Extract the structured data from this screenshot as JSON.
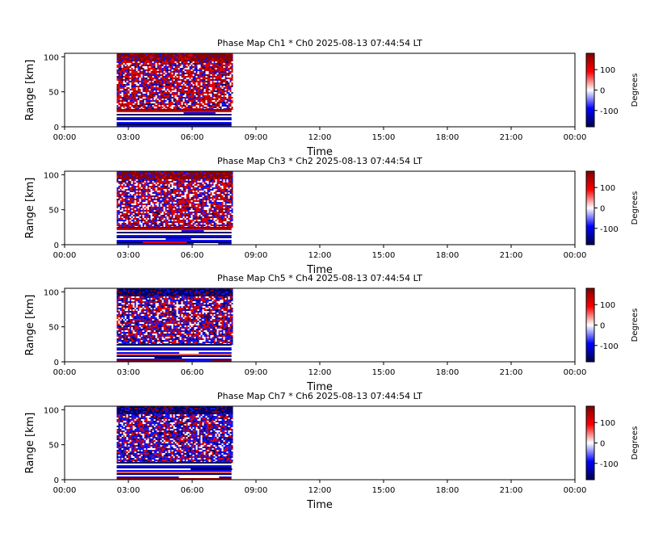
{
  "figure": {
    "background": "#ffffff"
  },
  "chart_data": [
    {
      "type": "heatmap",
      "title": "Phase Map Ch1 * Ch0 2025-08-13 07:44:54 LT",
      "xlabel": "Time",
      "ylabel": "Range [km]",
      "x_ticklabels": [
        "00:00",
        "03:00",
        "06:00",
        "09:00",
        "12:00",
        "15:00",
        "18:00",
        "21:00",
        "00:00"
      ],
      "x_ticks_hours": [
        0,
        3,
        6,
        9,
        12,
        15,
        18,
        21,
        24
      ],
      "xlim_hours": [
        0,
        24
      ],
      "ylim": [
        0,
        105
      ],
      "y_ticks": [
        0,
        50,
        100
      ],
      "data_extent": {
        "time_start_hours": 2.45,
        "time_end_hours": 7.85,
        "range_start_km": 0,
        "range_end_km": 105
      },
      "pattern": "red-dominant",
      "colorbar": {
        "label": "Degrees",
        "ticks": [
          100,
          0,
          -100
        ],
        "vmin": -180,
        "vmax": 180,
        "cmap": "seismic"
      }
    },
    {
      "type": "heatmap",
      "title": "Phase Map Ch3 * Ch2 2025-08-13 07:44:54 LT",
      "xlabel": "Time",
      "ylabel": "Range [km]",
      "x_ticklabels": [
        "00:00",
        "03:00",
        "06:00",
        "09:00",
        "12:00",
        "15:00",
        "18:00",
        "21:00",
        "00:00"
      ],
      "x_ticks_hours": [
        0,
        3,
        6,
        9,
        12,
        15,
        18,
        21,
        24
      ],
      "xlim_hours": [
        0,
        24
      ],
      "ylim": [
        0,
        105
      ],
      "y_ticks": [
        0,
        50,
        100
      ],
      "data_extent": {
        "time_start_hours": 2.45,
        "time_end_hours": 7.85,
        "range_start_km": 0,
        "range_end_km": 105
      },
      "pattern": "red-mixed",
      "colorbar": {
        "label": "Degrees",
        "ticks": [
          100,
          0,
          -100
        ],
        "vmin": -180,
        "vmax": 180,
        "cmap": "seismic"
      }
    },
    {
      "type": "heatmap",
      "title": "Phase Map Ch5 * Ch4 2025-08-13 07:44:54 LT",
      "xlabel": "Time",
      "ylabel": "Range [km]",
      "x_ticklabels": [
        "00:00",
        "03:00",
        "06:00",
        "09:00",
        "12:00",
        "15:00",
        "18:00",
        "21:00",
        "00:00"
      ],
      "x_ticks_hours": [
        0,
        3,
        6,
        9,
        12,
        15,
        18,
        21,
        24
      ],
      "xlim_hours": [
        0,
        24
      ],
      "ylim": [
        0,
        105
      ],
      "y_ticks": [
        0,
        50,
        100
      ],
      "data_extent": {
        "time_start_hours": 2.45,
        "time_end_hours": 7.85,
        "range_start_km": 0,
        "range_end_km": 105
      },
      "pattern": "blue-top-mixed",
      "colorbar": {
        "label": "Degrees",
        "ticks": [
          100,
          0,
          -100
        ],
        "vmin": -180,
        "vmax": 180,
        "cmap": "seismic"
      }
    },
    {
      "type": "heatmap",
      "title": "Phase Map Ch7 * Ch6 2025-08-13 07:44:54 LT",
      "xlabel": "Time",
      "ylabel": "Range [km]",
      "x_ticklabels": [
        "00:00",
        "03:00",
        "06:00",
        "09:00",
        "12:00",
        "15:00",
        "18:00",
        "21:00",
        "00:00"
      ],
      "x_ticks_hours": [
        0,
        3,
        6,
        9,
        12,
        15,
        18,
        21,
        24
      ],
      "xlim_hours": [
        0,
        24
      ],
      "ylim": [
        0,
        105
      ],
      "y_ticks": [
        0,
        50,
        100
      ],
      "data_extent": {
        "time_start_hours": 2.45,
        "time_end_hours": 7.85,
        "range_start_km": 0,
        "range_end_km": 105
      },
      "pattern": "blue-dominant",
      "colorbar": {
        "label": "Degrees",
        "ticks": [
          100,
          0,
          -100
        ],
        "vmin": -180,
        "vmax": 180,
        "cmap": "seismic"
      }
    }
  ]
}
